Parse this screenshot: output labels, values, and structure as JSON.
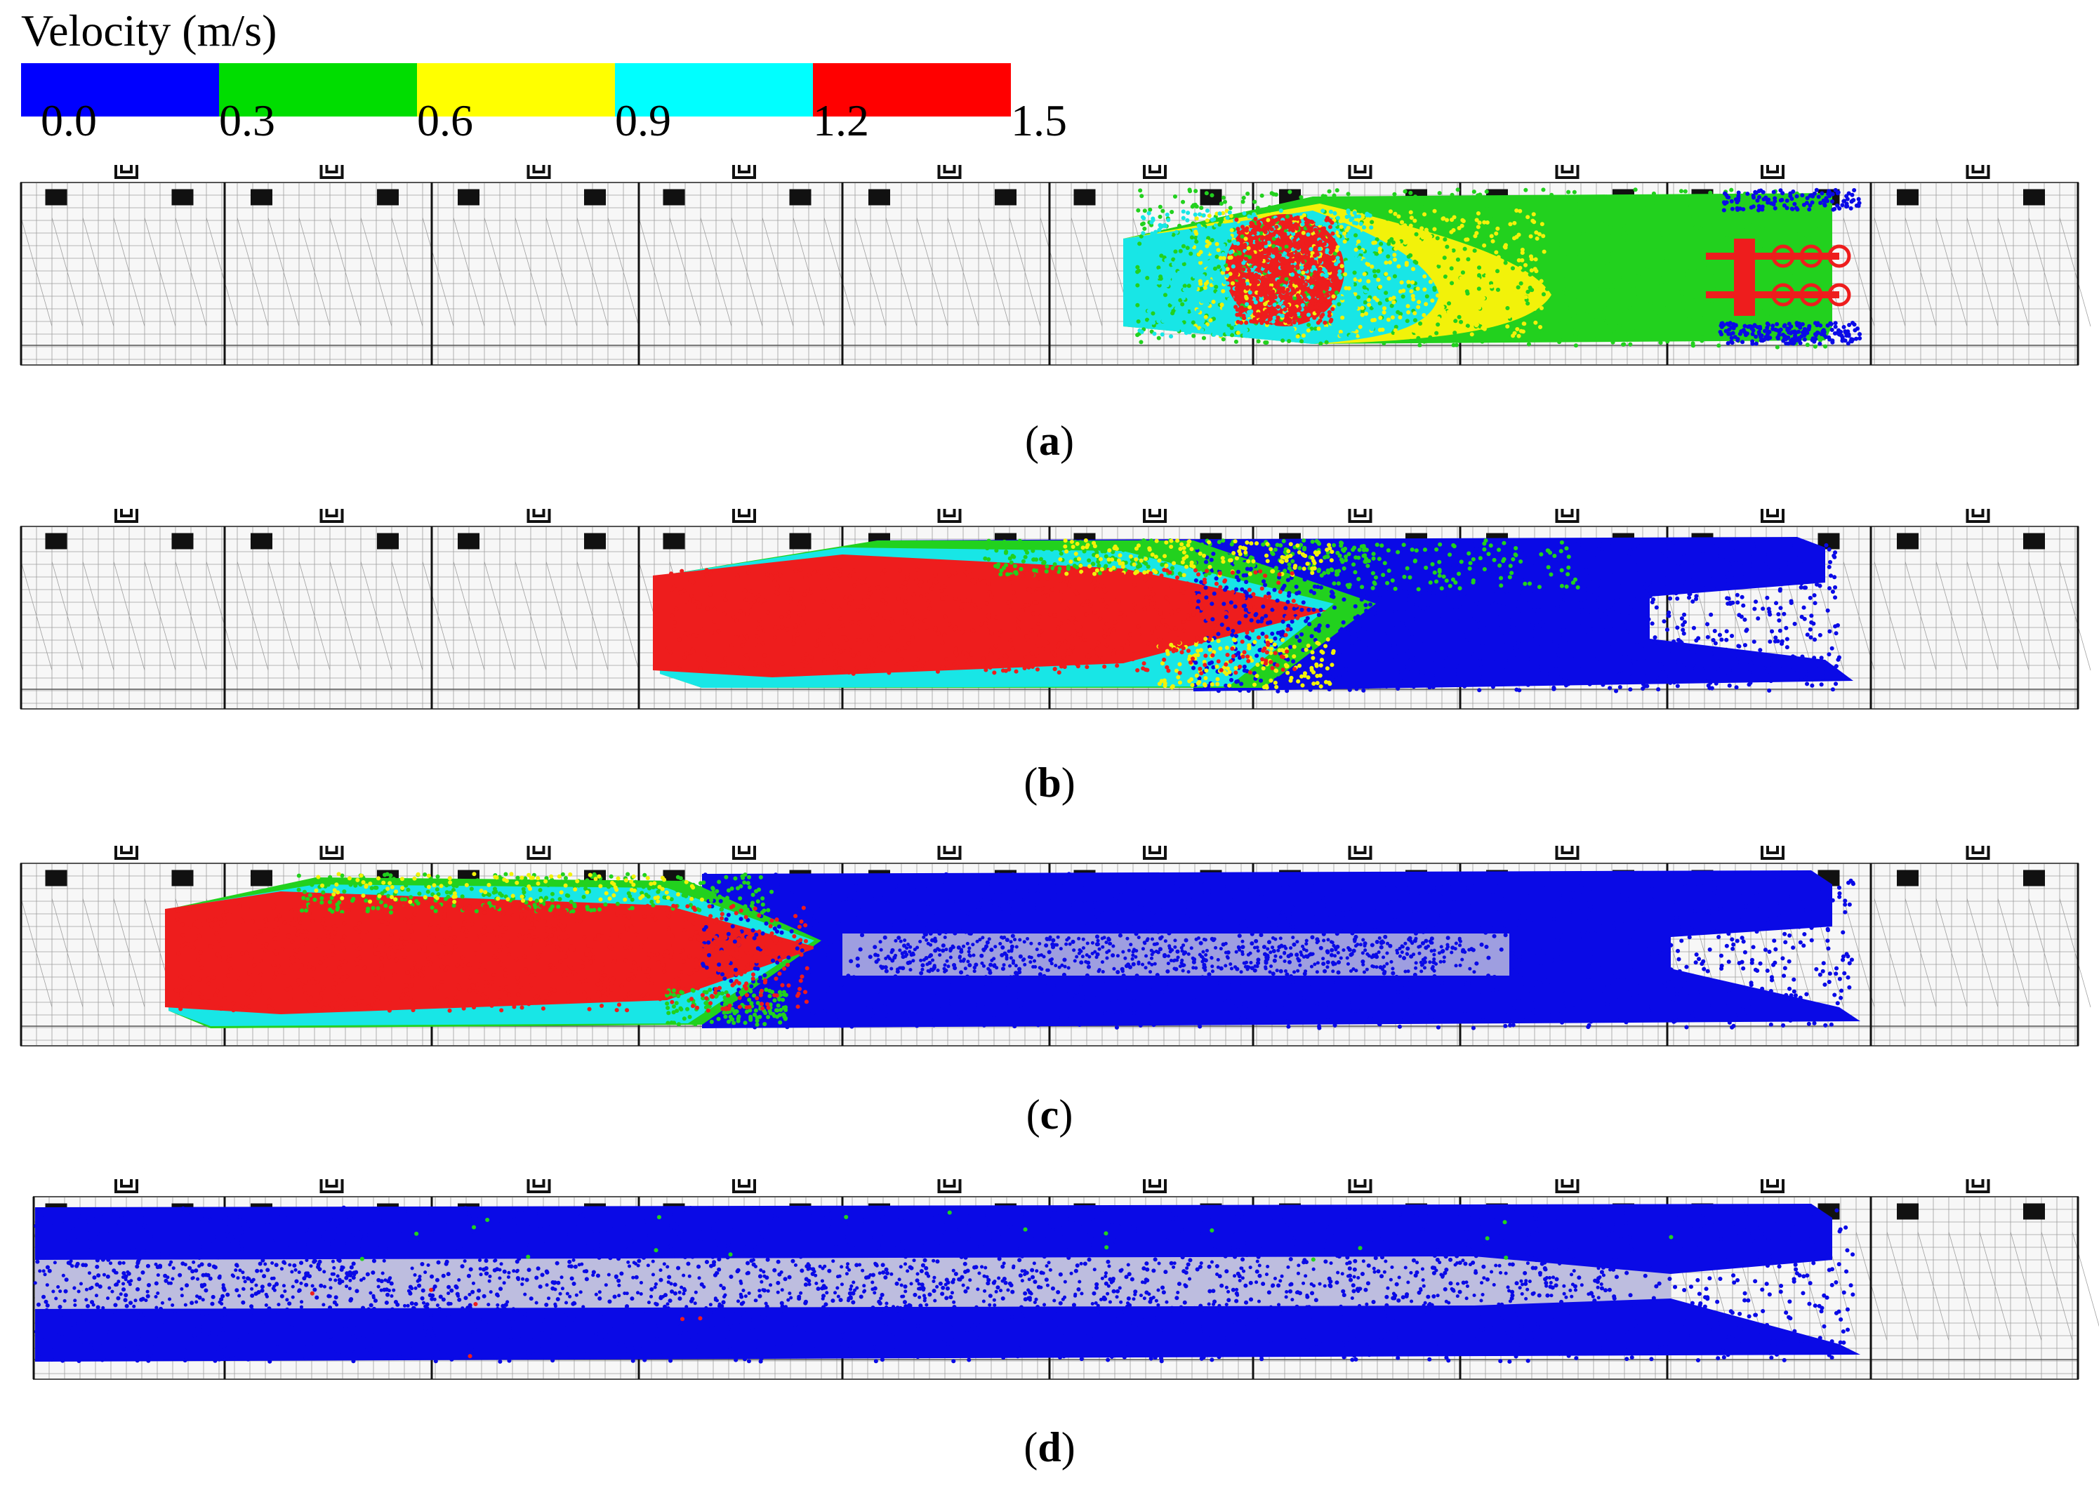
{
  "legend": {
    "title": "Velocity (m/s)",
    "ticks": [
      "0.0",
      "0.3",
      "0.6",
      "0.9",
      "1.2",
      "1.5"
    ],
    "colors": [
      "#0000ff",
      "#00dd00",
      "#ffff00",
      "#00ffff",
      "#ff0000"
    ]
  },
  "panels": [
    {
      "label": "a",
      "open": "(",
      "close": ")"
    },
    {
      "label": "b",
      "open": "(",
      "close": ")"
    },
    {
      "label": "c",
      "open": "(",
      "close": ")"
    },
    {
      "label": "d",
      "open": "(",
      "close": ")"
    }
  ],
  "colors": {
    "blue": "#0a0ae6",
    "green": "#22d11e",
    "yellow": "#f2f20a",
    "cyan": "#18e6e6",
    "red": "#ee1d1d",
    "mesh": "#555555"
  }
}
